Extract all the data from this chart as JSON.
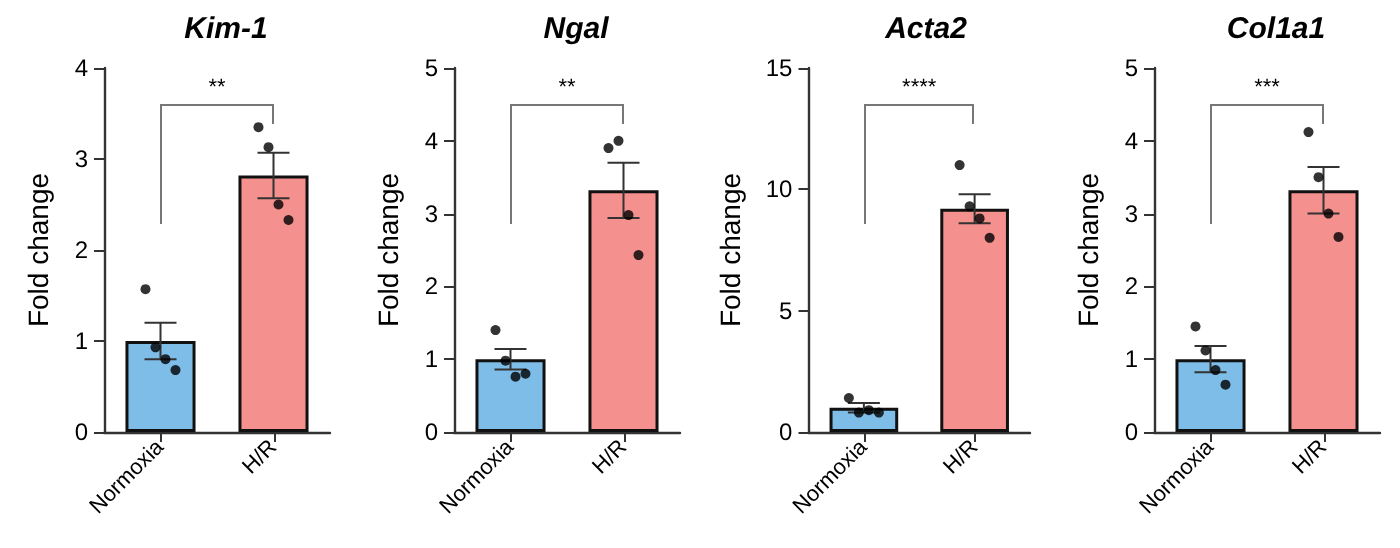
{
  "chart_data": [
    {
      "type": "bar",
      "title": "Kim-1",
      "ylabel": "Fold change",
      "categories": [
        "Normoxia",
        "H/R"
      ],
      "ylim": [
        0,
        4
      ],
      "yticks": [
        0,
        1,
        2,
        3,
        4
      ],
      "grid": false,
      "annotations": [
        "**"
      ],
      "series": [
        {
          "colors": [
            "#7fbde9",
            "#f4918f"
          ],
          "values": [
            1.0,
            2.82
          ],
          "errors": [
            0.2,
            0.25
          ]
        },
        {
          "type": "scatter",
          "color": "#000000",
          "marker": "circle",
          "x": [
            "Normoxia",
            "Normoxia",
            "Normoxia",
            "Normoxia",
            "H/R",
            "H/R",
            "H/R",
            "H/R"
          ],
          "values": [
            1.57,
            0.93,
            0.8,
            0.68,
            3.35,
            3.13,
            2.5,
            2.33
          ]
        }
      ]
    },
    {
      "type": "bar",
      "title": "Ngal",
      "ylabel": "Fold change",
      "categories": [
        "Normoxia",
        "H/R"
      ],
      "ylim": [
        0,
        5
      ],
      "yticks": [
        0,
        1,
        2,
        3,
        4,
        5
      ],
      "grid": false,
      "annotations": [
        "**"
      ],
      "series": [
        {
          "colors": [
            "#7fbde9",
            "#f4918f"
          ],
          "values": [
            1.0,
            3.32
          ],
          "errors": [
            0.14,
            0.38
          ]
        },
        {
          "type": "scatter",
          "color": "#000000",
          "marker": "circle",
          "x": [
            "Normoxia",
            "Normoxia",
            "Normoxia",
            "Normoxia",
            "H/R",
            "H/R",
            "H/R",
            "H/R"
          ],
          "values": [
            1.4,
            0.98,
            0.76,
            0.8,
            3.9,
            4.0,
            2.98,
            2.43
          ]
        }
      ]
    },
    {
      "type": "bar",
      "title": "Acta2",
      "ylabel": "Fold change",
      "categories": [
        "Normoxia",
        "H/R"
      ],
      "ylim": [
        0,
        15
      ],
      "yticks": [
        0,
        5,
        10,
        15
      ],
      "grid": false,
      "annotations": [
        "****"
      ],
      "series": [
        {
          "colors": [
            "#7fbde9",
            "#f4918f"
          ],
          "values": [
            1.0,
            9.2
          ],
          "errors": [
            0.2,
            0.6
          ]
        },
        {
          "type": "scatter",
          "color": "#000000",
          "marker": "circle",
          "x": [
            "Normoxia",
            "Normoxia",
            "Normoxia",
            "Normoxia",
            "H/R",
            "H/R",
            "H/R",
            "H/R"
          ],
          "values": [
            1.4,
            0.8,
            0.9,
            0.8,
            11.0,
            9.3,
            8.8,
            8.0
          ]
        }
      ]
    },
    {
      "type": "bar",
      "title": "Col1a1",
      "ylabel": "Fold change",
      "categories": [
        "Normoxia",
        "H/R"
      ],
      "ylim": [
        0,
        5
      ],
      "yticks": [
        0,
        1,
        2,
        3,
        4,
        5
      ],
      "grid": false,
      "annotations": [
        "***"
      ],
      "series": [
        {
          "colors": [
            "#7fbde9",
            "#f4918f"
          ],
          "values": [
            1.0,
            3.32
          ],
          "errors": [
            0.18,
            0.32
          ]
        },
        {
          "type": "scatter",
          "color": "#000000",
          "marker": "circle",
          "x": [
            "Normoxia",
            "Normoxia",
            "Normoxia",
            "Normoxia",
            "H/R",
            "H/R",
            "H/R",
            "H/R"
          ],
          "values": [
            1.45,
            1.12,
            0.85,
            0.65,
            4.12,
            3.5,
            3.0,
            2.68
          ]
        }
      ]
    }
  ]
}
